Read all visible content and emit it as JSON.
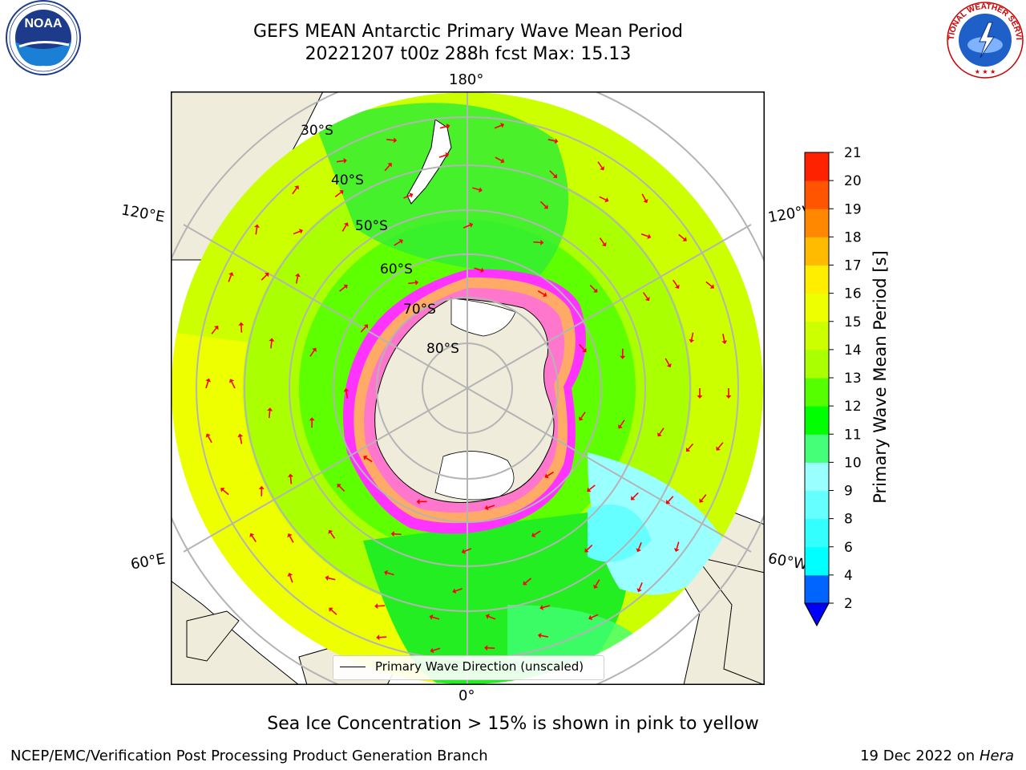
{
  "header": {
    "title_line1": "GEFS MEAN Antarctic Primary Wave Mean Period",
    "title_line2": "20221207 t00z 288h fcst   Max: 15.13"
  },
  "logos": {
    "left": {
      "icon": "noaa-logo",
      "text": "NOAA"
    },
    "right": {
      "icon": "nws-logo",
      "text": "NATIONAL WEATHER SERVICE"
    }
  },
  "map": {
    "projection": "south polar stereographic",
    "longitude_labels": {
      "top": "180°",
      "bottom": "0°",
      "upper_left": "120°E",
      "upper_right": "120°W",
      "lower_left": "60°E",
      "lower_right": "60°W"
    },
    "latitude_labels": [
      "30°S",
      "40°S",
      "50°S",
      "60°S",
      "70°S",
      "80°S"
    ],
    "colors": {
      "land": "#efecdc",
      "ocean_outside": "#ffffff",
      "gridline": "#b4b4b4",
      "arrow": "#ff0000",
      "sea_ice": [
        "#ff33ff",
        "#ff77cc",
        "#ffaa66",
        "#ffdd44",
        "#5577ff"
      ]
    },
    "legend": {
      "text": "Primary Wave Direction (unscaled)"
    }
  },
  "colorbar": {
    "label": "Primary Wave Mean Period [s]",
    "ticks": [
      "2",
      "4",
      "6",
      "8",
      "9",
      "10",
      "11",
      "12",
      "13",
      "14",
      "15",
      "16",
      "17",
      "18",
      "19",
      "20",
      "21"
    ],
    "colors": [
      "#0064ff",
      "#00ffff",
      "#33ffff",
      "#66ffff",
      "#99ffff",
      "#44ff77",
      "#00ff00",
      "#55ff00",
      "#aaff00",
      "#ccff00",
      "#eeff00",
      "#ffee00",
      "#ffbb00",
      "#ff8800",
      "#ff5500",
      "#ff2200"
    ],
    "under_color": "#0000ff"
  },
  "subtitle": "Sea Ice Concentration > 15% is shown in pink to yellow",
  "footer": {
    "left": "NCEP/EMC/Verification Post Processing Product Generation Branch",
    "right_date": "19 Dec 2022 on",
    "right_host": "Hera"
  }
}
